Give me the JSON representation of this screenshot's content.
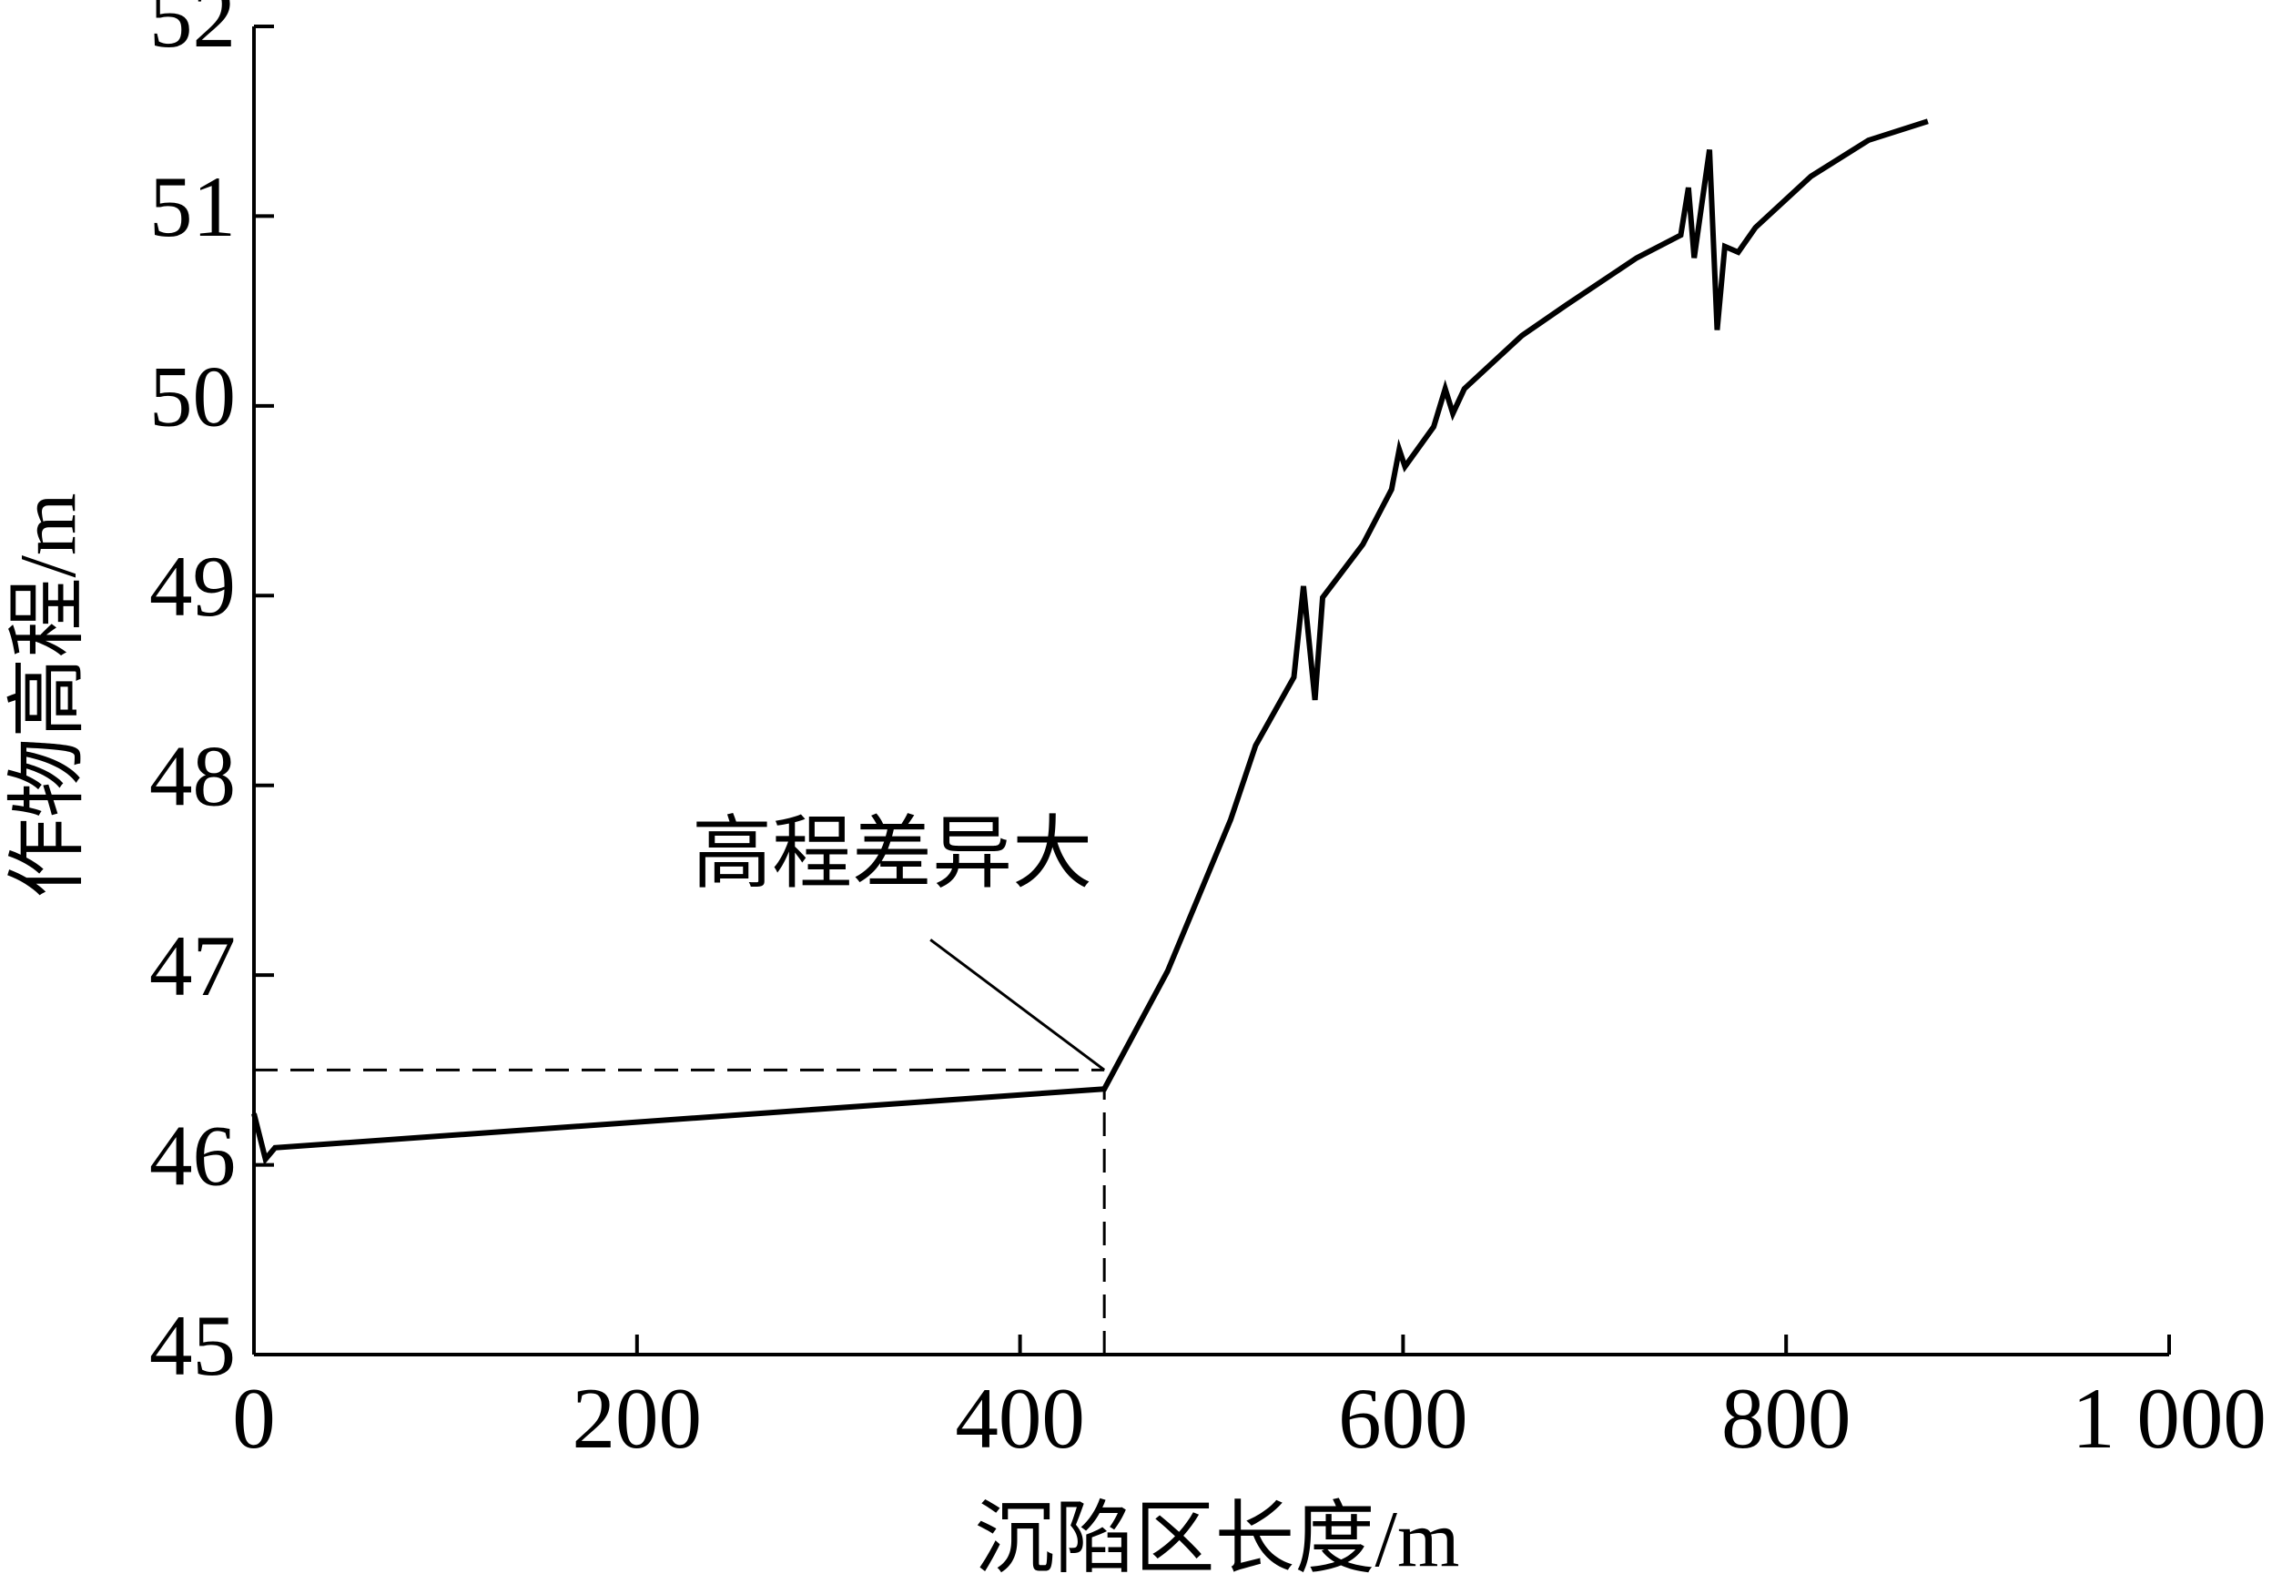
{
  "chart_data": {
    "type": "line",
    "x_label": "沉陷区长度/m",
    "y_label": "作物高程/m",
    "x": [
      0,
      6,
      11,
      444,
      477,
      510,
      523,
      543,
      548,
      554,
      558,
      579,
      594,
      598,
      601,
      616,
      622,
      626,
      632,
      662,
      685,
      722,
      745,
      749,
      752,
      760,
      764,
      768,
      775,
      784,
      813,
      843,
      874
    ],
    "series": [
      {
        "color": "#000000",
        "values": [
          46.27,
          46.03,
          46.09,
          46.4,
          47.02,
          47.82,
          48.21,
          48.57,
          49.05,
          48.45,
          48.99,
          49.27,
          49.56,
          49.77,
          49.68,
          49.89,
          50.09,
          49.96,
          50.09,
          50.37,
          50.53,
          50.78,
          50.9,
          51.15,
          50.78,
          51.35,
          50.4,
          50.84,
          50.81,
          50.94,
          51.21,
          51.4,
          51.5
        ]
      }
    ],
    "xlim": [
      0,
      1000
    ],
    "ylim": [
      45,
      52
    ],
    "xticks": [
      0,
      200,
      400,
      600,
      800,
      {
        "value": 1000,
        "label": "1 000"
      }
    ],
    "yticks": [
      45,
      46,
      47,
      48,
      49,
      50,
      51,
      52
    ],
    "reference_x": 444,
    "reference_y": 46.5,
    "annotation": {
      "text": "高程差异大",
      "x": 444,
      "y": 46.5
    }
  }
}
